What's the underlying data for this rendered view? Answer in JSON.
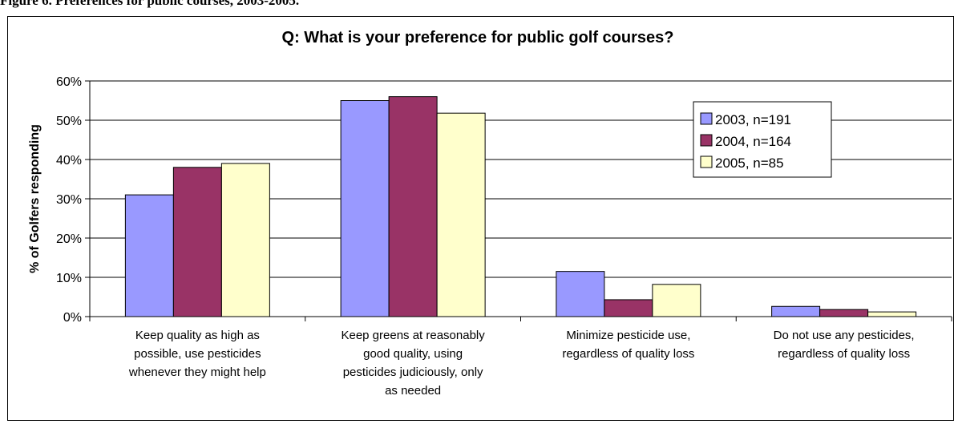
{
  "header_caption": "Figure 6. Preferences for public courses, 2003-2005.",
  "chart_data": {
    "type": "bar",
    "title": "Q: What is your preference for public golf courses?",
    "ylabel": "% of Golfers responding",
    "xlabel": "",
    "ylim": [
      0,
      60
    ],
    "yticks": [
      "0%",
      "10%",
      "20%",
      "30%",
      "40%",
      "50%",
      "60%"
    ],
    "grid": true,
    "legend_position": "top-right",
    "categories": [
      [
        "Keep quality as high as",
        "possible, use pesticides",
        "whenever they might help"
      ],
      [
        "Keep greens at reasonably",
        "good quality, using",
        "pesticides judiciously, only",
        "as needed"
      ],
      [
        "Minimize pesticide use,",
        "regardless of quality loss"
      ],
      [
        "Do not use any pesticides,",
        "regardless of quality loss"
      ]
    ],
    "series": [
      {
        "name": "2003, n=191",
        "color": "#9999ff",
        "values": [
          31,
          55,
          11.5,
          2.6
        ]
      },
      {
        "name": "2004, n=164",
        "color": "#993366",
        "values": [
          38,
          56,
          4.3,
          1.8
        ]
      },
      {
        "name": "2005, n=85",
        "color": "#ffffcc",
        "values": [
          39,
          51.8,
          8.2,
          1.2
        ]
      }
    ]
  }
}
